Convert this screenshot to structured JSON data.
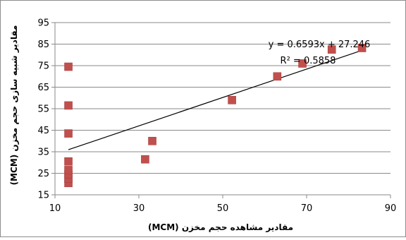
{
  "chart_data": {
    "type": "scatter",
    "xlabel": "مقادیر مشاهده حجم مخزن (MCM)",
    "ylabel": "مقادیر شبیه سازی حجم مخزن (MCM)",
    "xlim": [
      10,
      90
    ],
    "ylim": [
      15,
      95
    ],
    "x_ticks": [
      "10",
      "30",
      "50",
      "70",
      "90"
    ],
    "y_ticks": [
      "15",
      "25",
      "35",
      "45",
      "55",
      "65",
      "75",
      "85",
      "95"
    ],
    "x_ticks_values": [
      10,
      30,
      50,
      70,
      90
    ],
    "y_ticks_values": [
      15,
      25,
      35,
      45,
      55,
      65,
      75,
      85,
      95
    ],
    "grid": {
      "horizontal": true,
      "vertical": false
    },
    "marker_color": "#c0504d",
    "series": [
      {
        "points": [
          [
            13.2,
            20.5
          ],
          [
            13.2,
            22.5
          ],
          [
            13.2,
            24.5
          ],
          [
            13.2,
            26.5
          ],
          [
            13.2,
            30.5
          ],
          [
            13.2,
            43.5
          ],
          [
            13.2,
            56.5
          ],
          [
            13.2,
            74.5
          ],
          [
            31.5,
            31.5
          ],
          [
            33.2,
            40.0
          ],
          [
            52.2,
            59.0
          ],
          [
            63.0,
            70.0
          ],
          [
            69.0,
            76.0
          ],
          [
            76.0,
            82.5
          ],
          [
            83.2,
            83.2
          ]
        ]
      }
    ],
    "trendline": {
      "slope": 0.6593,
      "intercept": 27.246,
      "x_range": [
        13.2,
        83.2
      ],
      "color": "#000000"
    },
    "equation_label": "y = 0.6593x + 27.246",
    "r2_label": "R² = 0.5858"
  }
}
